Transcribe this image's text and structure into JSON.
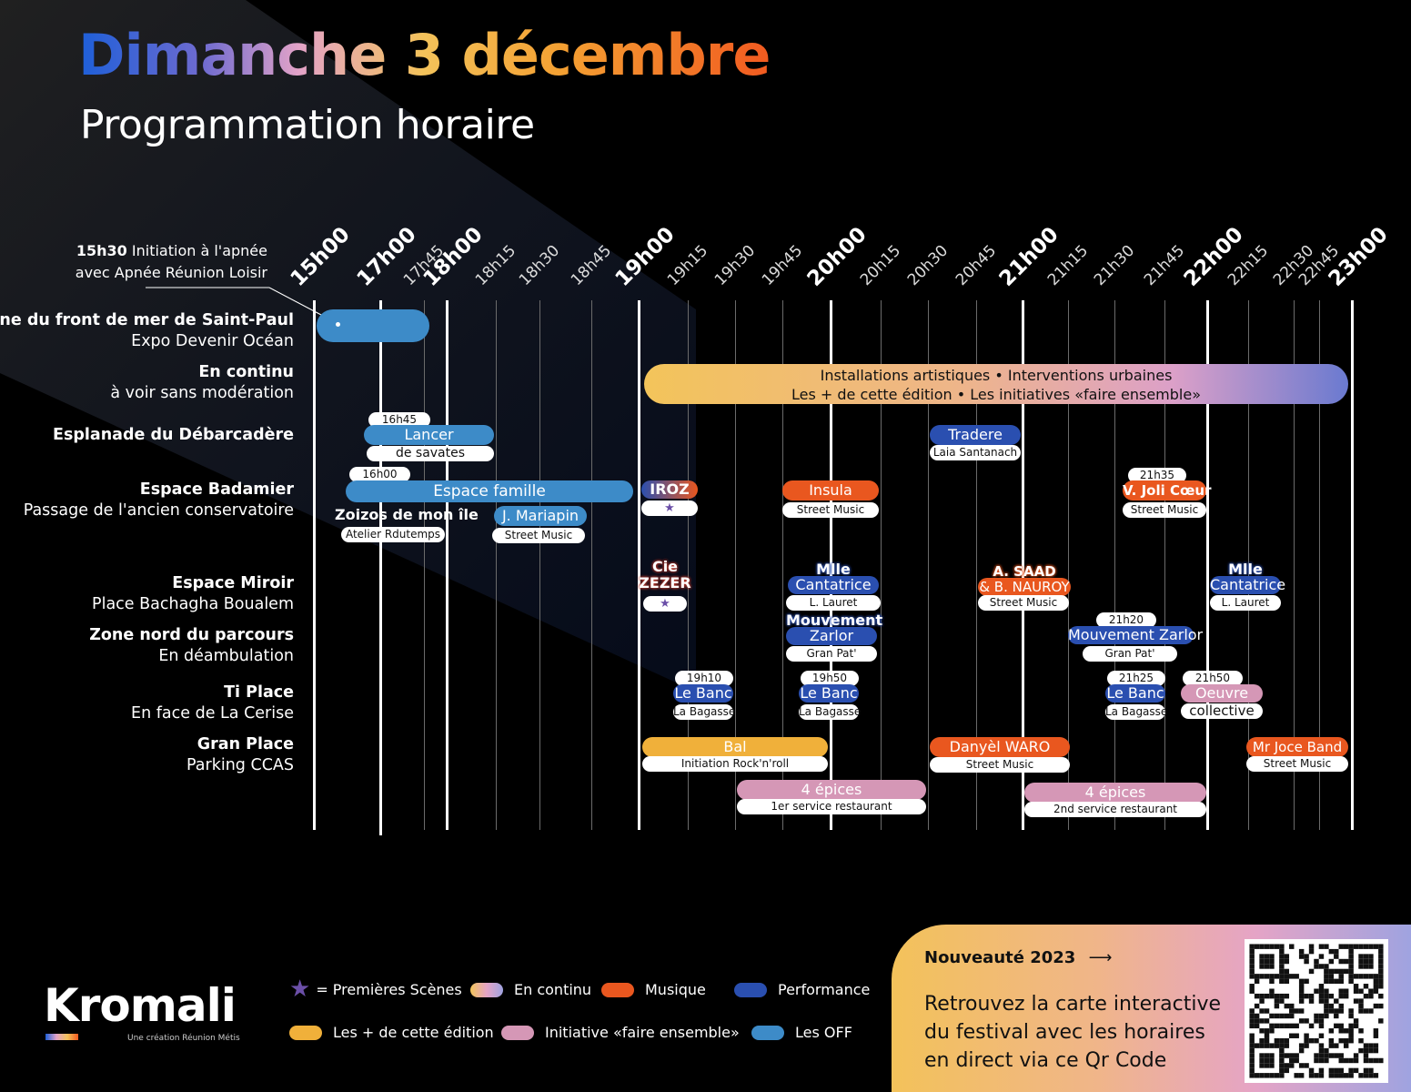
{
  "header": {
    "title": "Dimanche 3 décembre",
    "subtitle": "Programmation horaire"
  },
  "note": {
    "time": "15h30",
    "text1": "Initiation à l'apnée",
    "text2": "avec Apnée Réunion Loisir"
  },
  "timeline": {
    "labels": [
      {
        "text": "15h00",
        "major": true
      },
      {
        "text": "17h00",
        "major": true
      },
      {
        "text": "17h45",
        "major": false
      },
      {
        "text": "18h00",
        "major": true
      },
      {
        "text": "18h15",
        "major": false
      },
      {
        "text": "18h30",
        "major": false
      },
      {
        "text": "18h45",
        "major": false
      },
      {
        "text": "19h00",
        "major": true
      },
      {
        "text": "19h15",
        "major": false
      },
      {
        "text": "19h30",
        "major": false
      },
      {
        "text": "19h45",
        "major": false
      },
      {
        "text": "20h00",
        "major": true
      },
      {
        "text": "20h15",
        "major": false
      },
      {
        "text": "20h30",
        "major": false
      },
      {
        "text": "20h45",
        "major": false
      },
      {
        "text": "21h00",
        "major": true
      },
      {
        "text": "21h15",
        "major": false
      },
      {
        "text": "21h30",
        "major": false
      },
      {
        "text": "21h45",
        "major": false
      },
      {
        "text": "22h00",
        "major": true
      },
      {
        "text": "22h15",
        "major": false
      },
      {
        "text": "22h30",
        "major": false
      },
      {
        "text": "22h45",
        "major": false
      },
      {
        "text": "23h00",
        "major": true
      }
    ]
  },
  "venues": [
    {
      "name": "Piscine du front de mer de Saint-Paul",
      "sub": "Expo Devenir Océan"
    },
    {
      "name": "En continu",
      "sub": "à voir sans modération"
    },
    {
      "name": "Esplanade du Débarcadère",
      "sub": ""
    },
    {
      "name": "Espace Badamier",
      "sub": "Passage de l'ancien conservatoire"
    },
    {
      "name": "Espace Miroir",
      "sub": "Place Bachagha Boualem"
    },
    {
      "name": "Zone nord du parcours",
      "sub": "En déambulation"
    },
    {
      "name": "Ti Place",
      "sub": "En face de La Cerise"
    },
    {
      "name": "Gran Place",
      "sub": "Parking CCAS"
    }
  ],
  "events": {
    "continu_line1": "Installations artistiques • Interventions urbaines",
    "continu_line2": "Les + de cette édition • Les initiatives «faire ensemble»",
    "lancer_time": "16h45",
    "lancer_title": "Lancer",
    "lancer_sub": "de savates",
    "tradere_title": "Tradere",
    "tradere_sub": "Laia Santanach",
    "famille_time": "16h00",
    "famille_title": "Espace famille",
    "zoizos_title": "Zoizos de mon île",
    "zoizos_sub": "Atelier Rdutemps",
    "mariapin_title": "J. Mariapin",
    "mariapin_sub": "Street Music",
    "iroz_title": "IROZ",
    "insula_title": "Insula",
    "insula_sub": "Street Music",
    "joli_time": "21h35",
    "joli_title": "V. Joli Cœur",
    "joli_sub": "Street Music",
    "zezer_title1": "Cie",
    "zezer_title2": "ZEZER",
    "mlle1_title1": "Mlle",
    "mlle1_title2": "Cantatrice",
    "mlle1_sub": "L. Lauret",
    "saad_title1": "A. SAAD",
    "saad_title2": "& B. NAUROY",
    "saad_sub": "Street Music",
    "mlle2_title1": "Mlle",
    "mlle2_title2": "Cantatrice",
    "mlle2_sub": "L. Lauret",
    "zarlor1_title1": "Mouvement",
    "zarlor1_title2": "Zarlor",
    "zarlor1_sub": "Gran Pat'",
    "zarlor2_time": "21h20",
    "zarlor2_title": "Mouvement Zarlor",
    "zarlor2_sub": "Gran Pat'",
    "banc1_time": "19h10",
    "banc1_title": "Le Banc",
    "banc1_sub": "La Bagasse",
    "banc2_time": "19h50",
    "banc2_title": "Le Banc",
    "banc2_sub": "La Bagasse",
    "banc3_time": "21h25",
    "banc3_title": "Le Banc",
    "banc3_sub": "La Bagasse",
    "oeuvre_time": "21h50",
    "oeuvre_title": "Oeuvre",
    "oeuvre_sub": "collective",
    "bal_title": "Bal",
    "bal_sub": "Initiation Rock'n'roll",
    "waro_title": "Danyèl WARO",
    "waro_sub": "Street Music",
    "joce_title": "Mr Joce Band",
    "joce_sub": "Street Music",
    "epices1_title": "4 épices",
    "epices1_sub": "1er service restaurant",
    "epices2_title": "4 épices",
    "epices2_sub": "2nd service restaurant"
  },
  "legend": {
    "premieres": "= Premières Scènes",
    "continu": "En continu",
    "musique": "Musique",
    "performance": "Performance",
    "plus": "Les + de cette édition",
    "initiative": "Initiative «faire ensemble»",
    "off": "Les OFF"
  },
  "brand": {
    "logo": "Kromali",
    "tagline": "Une création Réunion Métis"
  },
  "promo": {
    "heading": "Nouveauté 2023",
    "arrow": "⟶",
    "body": "Retrouvez la carte interactive du festival avec les horaires en direct via ce Qr Code"
  },
  "colors": {
    "off_blue": "#3d8bc8",
    "performance_blue": "#2a4fb0",
    "musique_orange": "#e9571f",
    "plus_yellow": "#f0b03a",
    "initiative_pink": "#d597b6"
  }
}
